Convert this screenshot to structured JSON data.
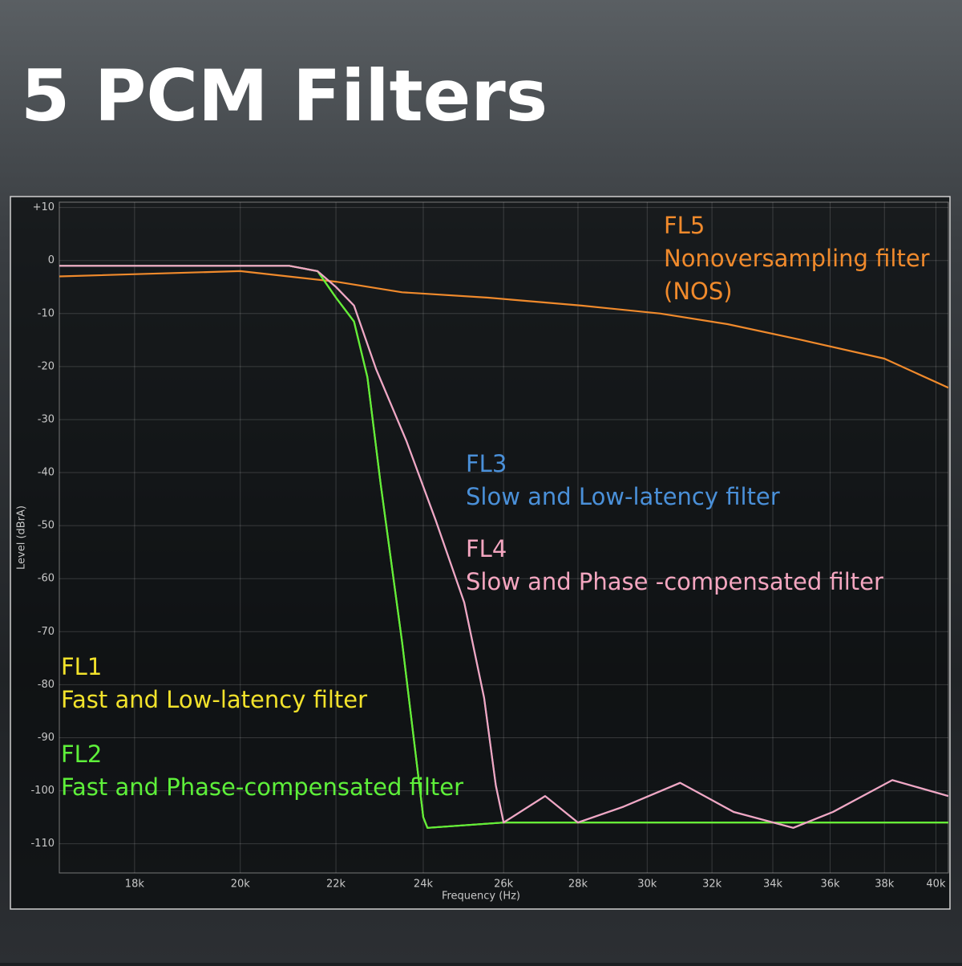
{
  "chart_data": {
    "type": "line",
    "title": "5 PCM Filters",
    "x_label": "Frequency (Hz)",
    "y_label": "Level (dBrA)",
    "x_scale": "log",
    "grid": true,
    "xlim": [
      16700,
      40500
    ],
    "ylim": [
      -115.5,
      11
    ],
    "xticks": [
      {
        "value": 18000,
        "label": "18k"
      },
      {
        "value": 20000,
        "label": "20k"
      },
      {
        "value": 22000,
        "label": "22k"
      },
      {
        "value": 24000,
        "label": "24k"
      },
      {
        "value": 26000,
        "label": "26k"
      },
      {
        "value": 28000,
        "label": "28k"
      },
      {
        "value": 30000,
        "label": "30k"
      },
      {
        "value": 32000,
        "label": "32k"
      },
      {
        "value": 34000,
        "label": "34k"
      },
      {
        "value": 36000,
        "label": "36k"
      },
      {
        "value": 38000,
        "label": "38k"
      },
      {
        "value": 40000,
        "label": "40k"
      }
    ],
    "yticks": [
      {
        "value": 10,
        "label": "+10"
      },
      0,
      -10,
      -20,
      -30,
      -40,
      -50,
      -60,
      -70,
      -80,
      -90,
      -100,
      -110
    ],
    "series": [
      {
        "name": "FL5",
        "description": [
          "Nonoversampling filter",
          "(NOS)"
        ],
        "color": "#f08a2c",
        "x": [
          16700,
          20000,
          22000,
          23500,
          25600,
          28100,
          30400,
          32500,
          35000,
          38000,
          40500
        ],
        "values": [
          -3,
          -2,
          -4,
          -6,
          -7,
          -8.5,
          -10,
          -12,
          -15,
          -18.5,
          -24
        ]
      },
      {
        "name": "FL1",
        "description": [
          "Fast and Low-latency filter"
        ],
        "color": "#f2e22b",
        "x": [
          16700,
          18000,
          20000,
          21000,
          21600,
          22000,
          22400,
          22700,
          23000,
          23500,
          24000,
          24100,
          26000,
          28000,
          30000,
          32000,
          34000,
          36000,
          38000,
          40500
        ],
        "values": [
          -1,
          -1,
          -1,
          -1,
          -2,
          -7,
          -11.5,
          -22,
          -42,
          -72,
          -105,
          -107,
          -106,
          -106,
          -106,
          -106,
          -106,
          -106,
          -106,
          -106
        ]
      },
      {
        "name": "FL2",
        "description": [
          "Fast and Phase-compensated filter"
        ],
        "color": "#5ef03a",
        "x": [
          16700,
          18000,
          20000,
          21000,
          21600,
          22000,
          22400,
          22700,
          23000,
          23500,
          24000,
          24100,
          26000,
          28000,
          30000,
          32000,
          34000,
          36000,
          38000,
          40500
        ],
        "values": [
          -1,
          -1,
          -1,
          -1,
          -2,
          -7,
          -11.5,
          -22,
          -42,
          -72,
          -105,
          -107,
          -106,
          -106,
          -106,
          -106,
          -106,
          -106,
          -106,
          -106
        ]
      },
      {
        "name": "FL3",
        "description": [
          "Slow and Low-latency filter"
        ],
        "color": "#4a90d9",
        "x": [
          16700,
          18000,
          20000,
          21000,
          21600,
          22000,
          22400,
          22900,
          23600,
          24300,
          25000,
          25500,
          25800,
          26000,
          27100,
          28000,
          29300,
          31000,
          32700,
          34700,
          36100,
          38300,
          40500
        ],
        "values": [
          -1,
          -1,
          -1,
          -1,
          -2,
          -5,
          -8.5,
          -20.5,
          -34,
          -49,
          -64.5,
          -82.5,
          -99,
          -106,
          -101,
          -106,
          -103,
          -98.5,
          -104,
          -107,
          -104,
          -98,
          -101
        ]
      },
      {
        "name": "FL4",
        "description": [
          "Slow and Phase -compensated filter"
        ],
        "color": "#f4a6c0",
        "x": [
          16700,
          18000,
          20000,
          21000,
          21600,
          22000,
          22400,
          22900,
          23600,
          24300,
          25000,
          25500,
          25800,
          26000,
          27100,
          28000,
          29300,
          31000,
          32700,
          34700,
          36100,
          38300,
          40500
        ],
        "values": [
          -1,
          -1,
          -1,
          -1,
          -2,
          -5,
          -8.5,
          -20.5,
          -34,
          -49,
          -64.5,
          -82.5,
          -99,
          -106,
          -101,
          -106,
          -103,
          -98.5,
          -104,
          -107,
          -104,
          -98,
          -101
        ]
      }
    ]
  }
}
